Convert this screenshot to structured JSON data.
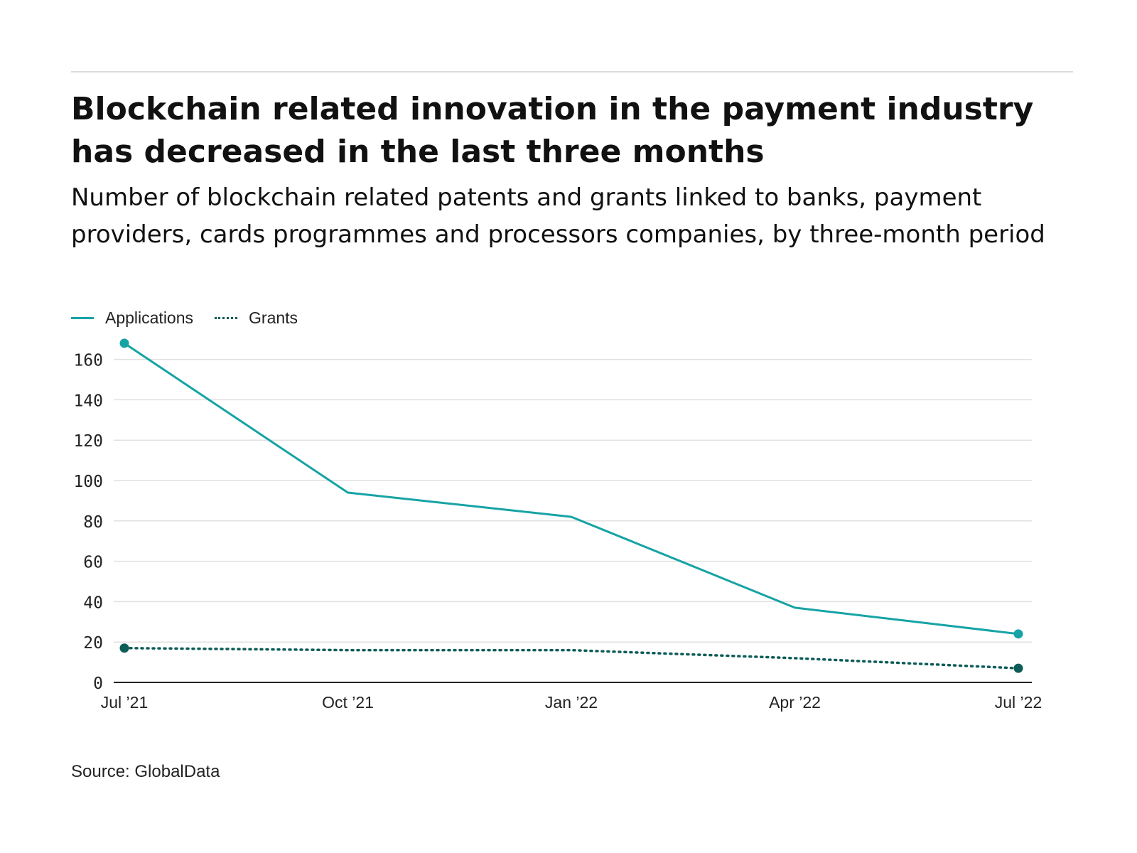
{
  "title": "Blockchain related innovation in the payment industry has decreased in the last three months",
  "subtitle": "Number of blockchain related patents and grants linked to banks, payment providers, cards programmes and processors companies, by three-month period",
  "source": "Source: GlobalData",
  "colors": {
    "applications": "#17a3a5",
    "grants": "#0c5c58",
    "grid": "#e0e0e0",
    "axis": "#222222"
  },
  "chart_data": {
    "type": "line",
    "title": "Blockchain related innovation in the payment industry has decreased in the last three months",
    "x": [
      "Jul ’21",
      "Oct ’21",
      "Jan ’22",
      "Apr ’22",
      "Jul ’22"
    ],
    "x_dates": [
      "2021-07-01",
      "2021-10-01",
      "2022-01-01",
      "2022-04-01",
      "2022-07-01"
    ],
    "series": [
      {
        "name": "Applications",
        "values": [
          168,
          94,
          82,
          37,
          24
        ],
        "style": "solid",
        "color": "#17a3a5",
        "end_markers": true
      },
      {
        "name": "Grants",
        "values": [
          17,
          16,
          16,
          12,
          7
        ],
        "style": "dotted",
        "color": "#0c5c58",
        "end_markers": true
      }
    ],
    "y_ticks": [
      0,
      20,
      40,
      60,
      80,
      100,
      120,
      140,
      160
    ],
    "ylim": [
      0,
      170
    ],
    "grid": true,
    "legend": "top-left",
    "xlabel": "",
    "ylabel": ""
  }
}
